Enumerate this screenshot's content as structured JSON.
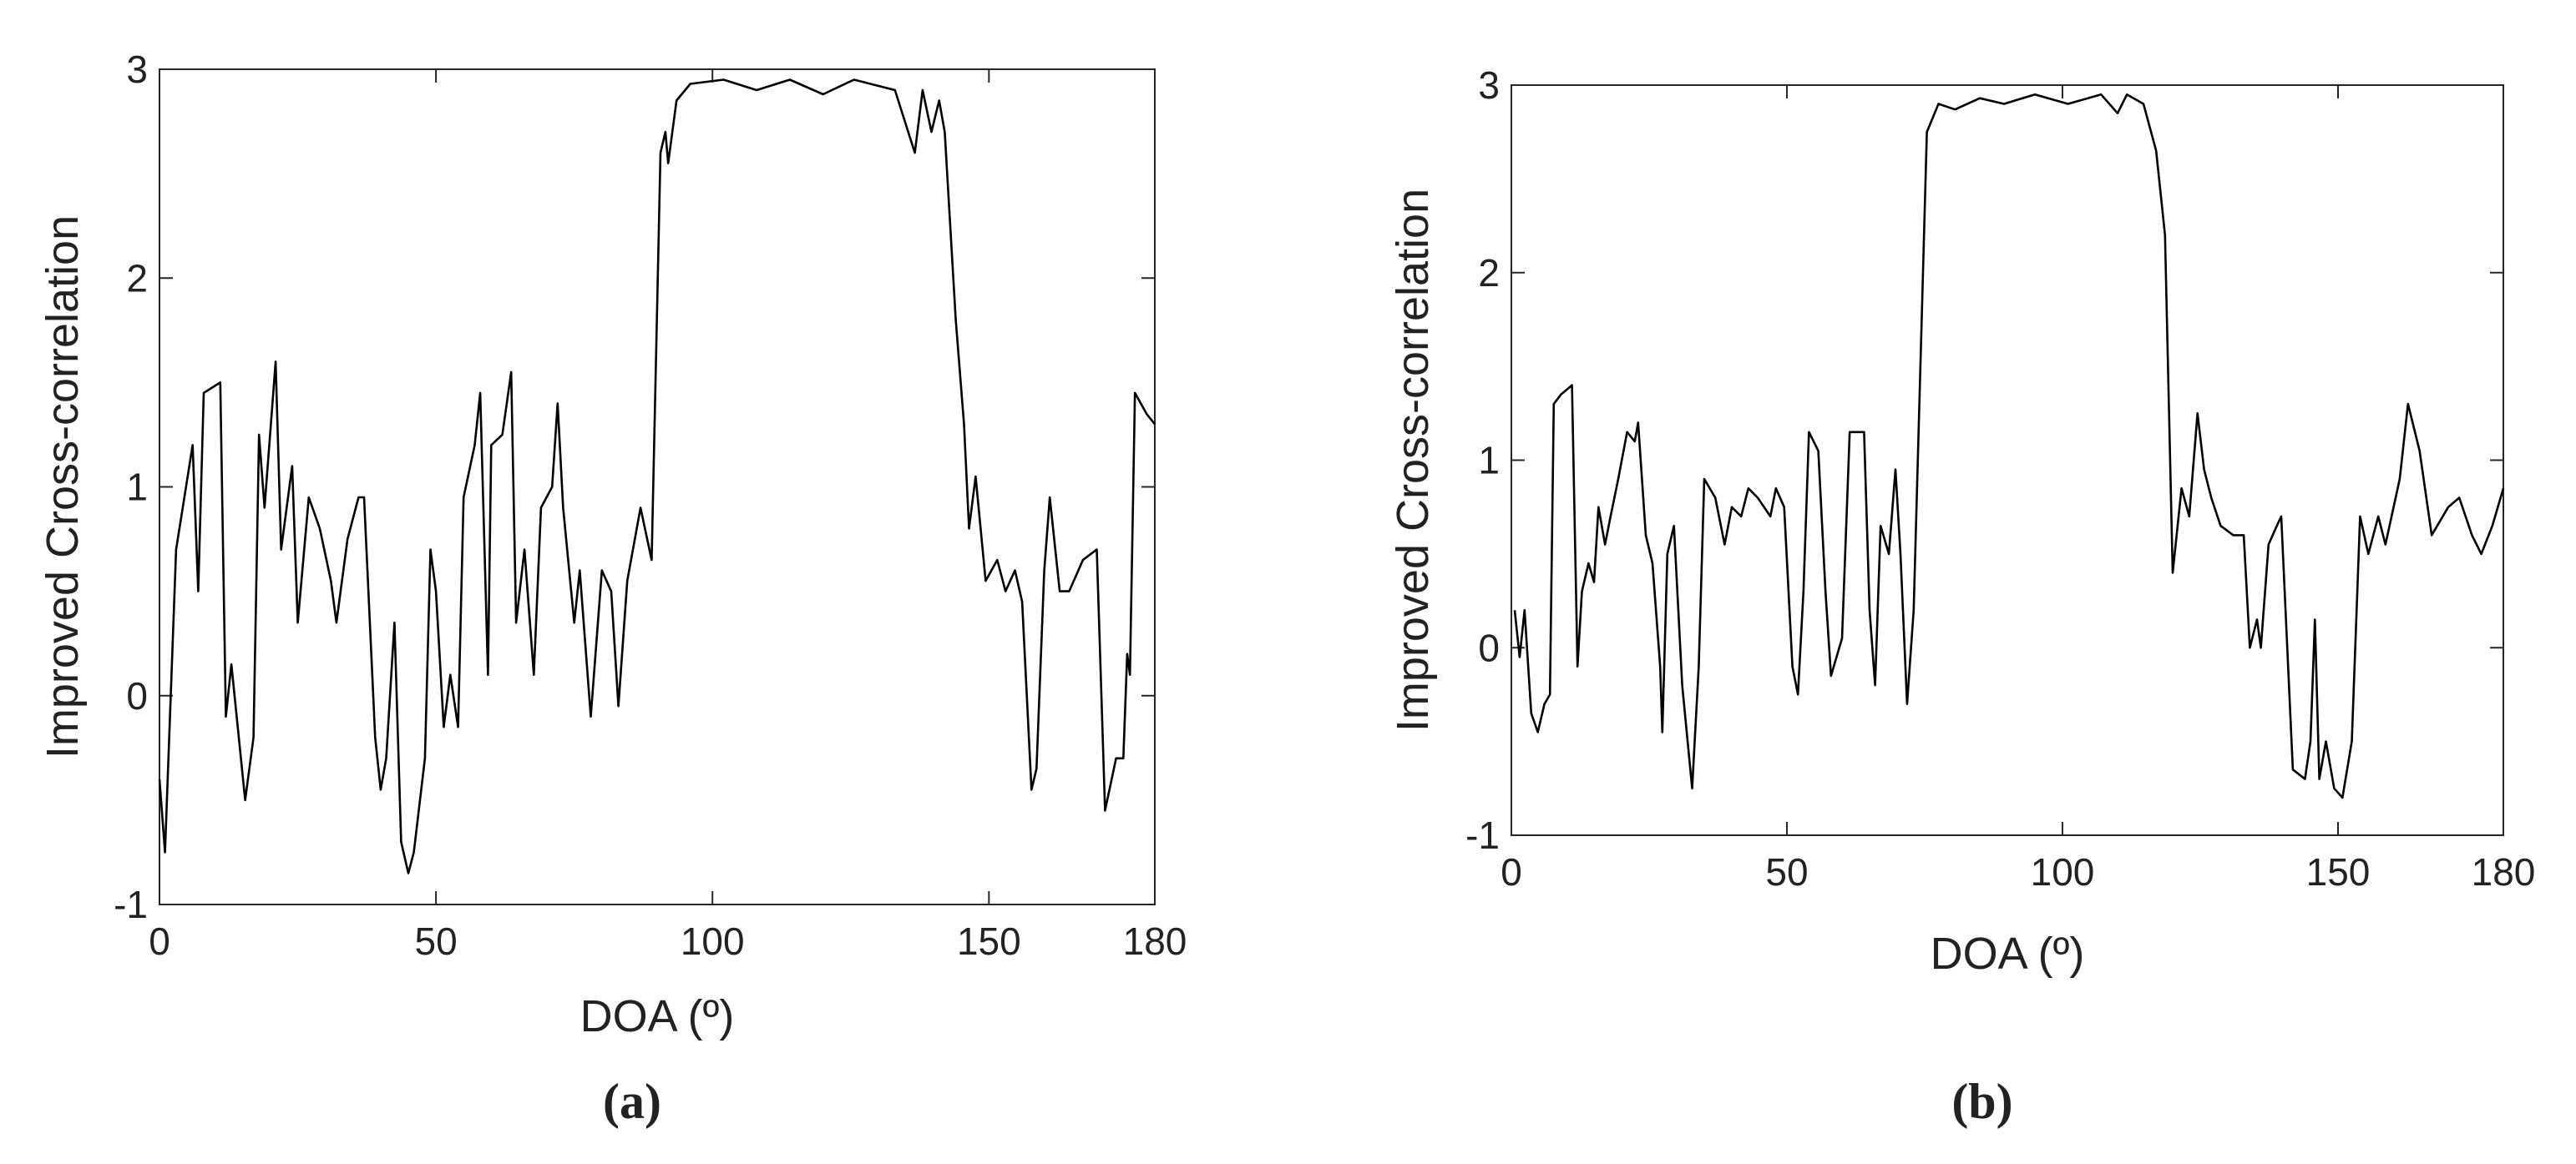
{
  "chart_data": [
    {
      "type": "line",
      "caption": "(a)",
      "xlabel": "DOA (º)",
      "ylabel": "Improved Cross-correlation",
      "xlim": [
        0,
        180
      ],
      "xticks": [
        0,
        50,
        100,
        150,
        180
      ],
      "ylim": [
        -1,
        3
      ],
      "yticks": [
        -1,
        0,
        1,
        2,
        3
      ],
      "series": [
        {
          "color": "#000000",
          "x": [
            0,
            1,
            3,
            6,
            7,
            8,
            11,
            12,
            13,
            15.5,
            17,
            18,
            19,
            21,
            22,
            24,
            25,
            27,
            29,
            31,
            32,
            34,
            36,
            37,
            39,
            40,
            41,
            42.5,
            43.7,
            45,
            46,
            48,
            49,
            50,
            51.4,
            52.6,
            54,
            55,
            57,
            58,
            59.4,
            60,
            62,
            63.6,
            64.5,
            66,
            67.7,
            69,
            71,
            72,
            73,
            75,
            76,
            78,
            80,
            81.7,
            83,
            84.6,
            87,
            89,
            90.6,
            91.5,
            92,
            93.5,
            96,
            102,
            108,
            114,
            120,
            125.6,
            133,
            136.6,
            138,
            139.6,
            141,
            142,
            144,
            145.5,
            146.4,
            147.6,
            149.4,
            151.5,
            153,
            154.7,
            156,
            157.7,
            158.6,
            160,
            161,
            162.8,
            164.5,
            167,
            169.5,
            171,
            173,
            174.3,
            175,
            175.5,
            176.4,
            178.5,
            180
          ],
          "values": [
            -0.4,
            -0.75,
            0.7,
            1.2,
            0.5,
            1.45,
            1.5,
            -0.1,
            0.15,
            -0.5,
            -0.2,
            1.25,
            0.9,
            1.6,
            0.7,
            1.1,
            0.35,
            0.95,
            0.8,
            0.55,
            0.35,
            0.75,
            0.95,
            0.95,
            -0.2,
            -0.45,
            -0.3,
            0.35,
            -0.7,
            -0.85,
            -0.75,
            -0.3,
            0.7,
            0.5,
            -0.15,
            0.1,
            -0.15,
            0.95,
            1.2,
            1.45,
            0.1,
            1.2,
            1.25,
            1.55,
            0.35,
            0.7,
            0.1,
            0.9,
            1.0,
            1.4,
            0.9,
            0.35,
            0.6,
            -0.1,
            0.6,
            0.5,
            -0.05,
            0.55,
            0.9,
            0.65,
            2.6,
            2.7,
            2.55,
            2.85,
            2.93,
            2.95,
            2.9,
            2.95,
            2.88,
            2.95,
            2.9,
            2.6,
            2.9,
            2.7,
            2.85,
            2.7,
            1.8,
            1.3,
            0.8,
            1.05,
            0.55,
            0.65,
            0.5,
            0.6,
            0.45,
            -0.45,
            -0.35,
            0.6,
            0.95,
            0.5,
            0.5,
            0.65,
            0.7,
            -0.55,
            -0.3,
            -0.3,
            0.2,
            0.1,
            1.45,
            1.35,
            1.3
          ]
        }
      ]
    },
    {
      "type": "line",
      "caption": "(b)",
      "xlabel": "DOA (º)",
      "ylabel": "Improved Cross-correlation",
      "xlim": [
        0,
        180
      ],
      "xticks": [
        0,
        50,
        100,
        150,
        180
      ],
      "ylim": [
        -1,
        3
      ],
      "yticks": [
        -1,
        0,
        1,
        2,
        3
      ],
      "series": [
        {
          "color": "#000000",
          "x": [
            0.6,
            1.5,
            2.4,
            3.6,
            4.8,
            6,
            7,
            7.7,
            9,
            11,
            12,
            12.8,
            14,
            15,
            15.8,
            17,
            18,
            19.4,
            21,
            22.4,
            23,
            24.4,
            25.6,
            27,
            27.4,
            28.3,
            29.5,
            31,
            32.8,
            34,
            35,
            37,
            38.7,
            40,
            41.7,
            43,
            44.7,
            47,
            48,
            49.5,
            51,
            52,
            53,
            54,
            55.7,
            57,
            58,
            60,
            61.4,
            64,
            65,
            66,
            67,
            68.5,
            69.7,
            70.6,
            71.8,
            73,
            75.4,
            77.5,
            80.5,
            85,
            89.4,
            95,
            101,
            107,
            110,
            111.7,
            114.7,
            117,
            118.6,
            120,
            121.6,
            123,
            124.5,
            125.7,
            127,
            128.7,
            131,
            132.9,
            134,
            135.3,
            136,
            137.4,
            138.9,
            139.7,
            141.8,
            144,
            145,
            145.8,
            146.6,
            147.8,
            149.3,
            150.8,
            152.5,
            154,
            155.5,
            157.3,
            158.6,
            161.2,
            162.7,
            164.8,
            167,
            170,
            172,
            174.3,
            176,
            178,
            180
          ],
          "values": [
            0.2,
            -0.05,
            0.2,
            -0.35,
            -0.45,
            -0.3,
            -0.25,
            1.3,
            1.35,
            1.4,
            -0.1,
            0.3,
            0.45,
            0.35,
            0.75,
            0.55,
            0.7,
            0.9,
            1.15,
            1.1,
            1.2,
            0.6,
            0.45,
            -0.1,
            -0.45,
            0.5,
            0.65,
            -0.2,
            -0.75,
            -0.1,
            0.9,
            0.8,
            0.55,
            0.75,
            0.7,
            0.85,
            0.8,
            0.7,
            0.85,
            0.75,
            -0.1,
            -0.25,
            0.3,
            1.15,
            1.05,
            0.3,
            -0.15,
            0.05,
            1.15,
            1.15,
            0.2,
            -0.2,
            0.65,
            0.5,
            0.95,
            0.5,
            -0.3,
            0.2,
            2.75,
            2.9,
            2.87,
            2.93,
            2.9,
            2.95,
            2.9,
            2.95,
            2.85,
            2.95,
            2.9,
            2.65,
            2.2,
            0.4,
            0.85,
            0.7,
            1.25,
            0.95,
            0.8,
            0.65,
            0.6,
            0.6,
            0.0,
            0.15,
            0.0,
            0.55,
            0.65,
            0.7,
            -0.65,
            -0.7,
            -0.5,
            0.15,
            -0.7,
            -0.5,
            -0.75,
            -0.8,
            -0.5,
            0.7,
            0.5,
            0.7,
            0.55,
            0.9,
            1.3,
            1.05,
            0.6,
            0.75,
            0.8,
            0.6,
            0.5,
            0.65,
            0.85
          ]
        }
      ]
    }
  ]
}
